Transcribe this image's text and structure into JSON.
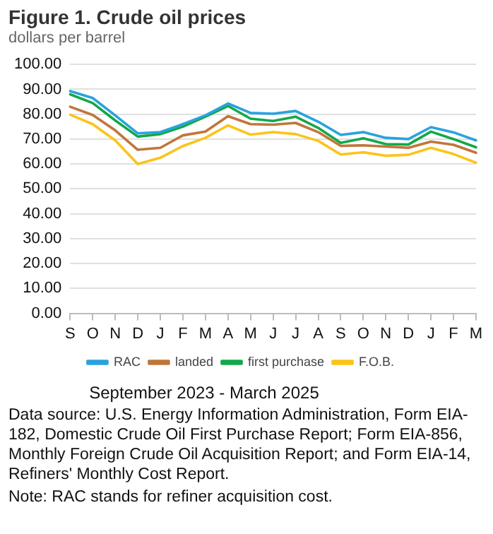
{
  "chart_data": {
    "type": "line",
    "title": "Figure 1. Crude oil prices",
    "subtitle": "dollars per barrel",
    "xlabel": "September 2023  -  March 2025",
    "categories": [
      "S",
      "O",
      "N",
      "D",
      "J",
      "F",
      "M",
      "A",
      "M",
      "J",
      "J",
      "A",
      "S",
      "O",
      "N",
      "D",
      "J",
      "F",
      "M"
    ],
    "series": [
      {
        "name": "RAC",
        "color": "#29a3dd",
        "values": [
          89.3,
          86.5,
          79.5,
          72.3,
          72.8,
          76,
          79.5,
          84.3,
          80.5,
          80.2,
          81.3,
          77,
          71.7,
          72.8,
          70.5,
          70,
          74.8,
          72.7,
          69.5
        ]
      },
      {
        "name": "landed",
        "color": "#c0763a",
        "values": [
          83,
          79.7,
          73.5,
          65.7,
          66.5,
          71.5,
          73,
          79.2,
          76,
          75.8,
          76.5,
          72.8,
          67.3,
          67.5,
          67,
          66.5,
          69,
          67.7,
          64.5
        ]
      },
      {
        "name": "first purchase",
        "color": "#13a84a",
        "values": [
          88,
          84.5,
          77.5,
          71,
          72,
          75,
          79,
          83.3,
          78.2,
          77.3,
          79,
          74.5,
          68.5,
          70.3,
          68,
          67.8,
          73,
          70,
          66.7
        ]
      },
      {
        "name": "F.O.B.",
        "color": "#fcc419",
        "values": [
          79.8,
          76,
          69.5,
          60,
          62.5,
          67.2,
          70.5,
          75.5,
          71.8,
          72.8,
          72,
          69.3,
          63.8,
          64.7,
          63.3,
          63.7,
          66.5,
          64,
          60.5
        ]
      }
    ],
    "ylim": [
      0,
      100
    ],
    "yticks": [
      {
        "value": 0,
        "label": "0.00"
      },
      {
        "value": 10,
        "label": "10.00"
      },
      {
        "value": 20,
        "label": "20.00"
      },
      {
        "value": 30,
        "label": "30.00"
      },
      {
        "value": 40,
        "label": "40.00"
      },
      {
        "value": 50,
        "label": "50.00"
      },
      {
        "value": 60,
        "label": "60.00"
      },
      {
        "value": 70,
        "label": "70.00"
      },
      {
        "value": 80,
        "label": "80.00"
      },
      {
        "value": 90,
        "label": "90.00"
      },
      {
        "value": 100,
        "label": "100.00"
      }
    ],
    "grid": "y",
    "legend": "bottom",
    "marker": "none",
    "line_style": "solid",
    "annotations": [
      "Data source: U.S. Energy Information Administration, Form EIA-182, Domestic Crude Oil First Purchase Report; Form EIA-856, Monthly Foreign Crude Oil Acquisition Report; and Form EIA-14, Refiners' Monthly Cost Report.",
      "Note: RAC stands for refiner acquisition cost."
    ]
  }
}
